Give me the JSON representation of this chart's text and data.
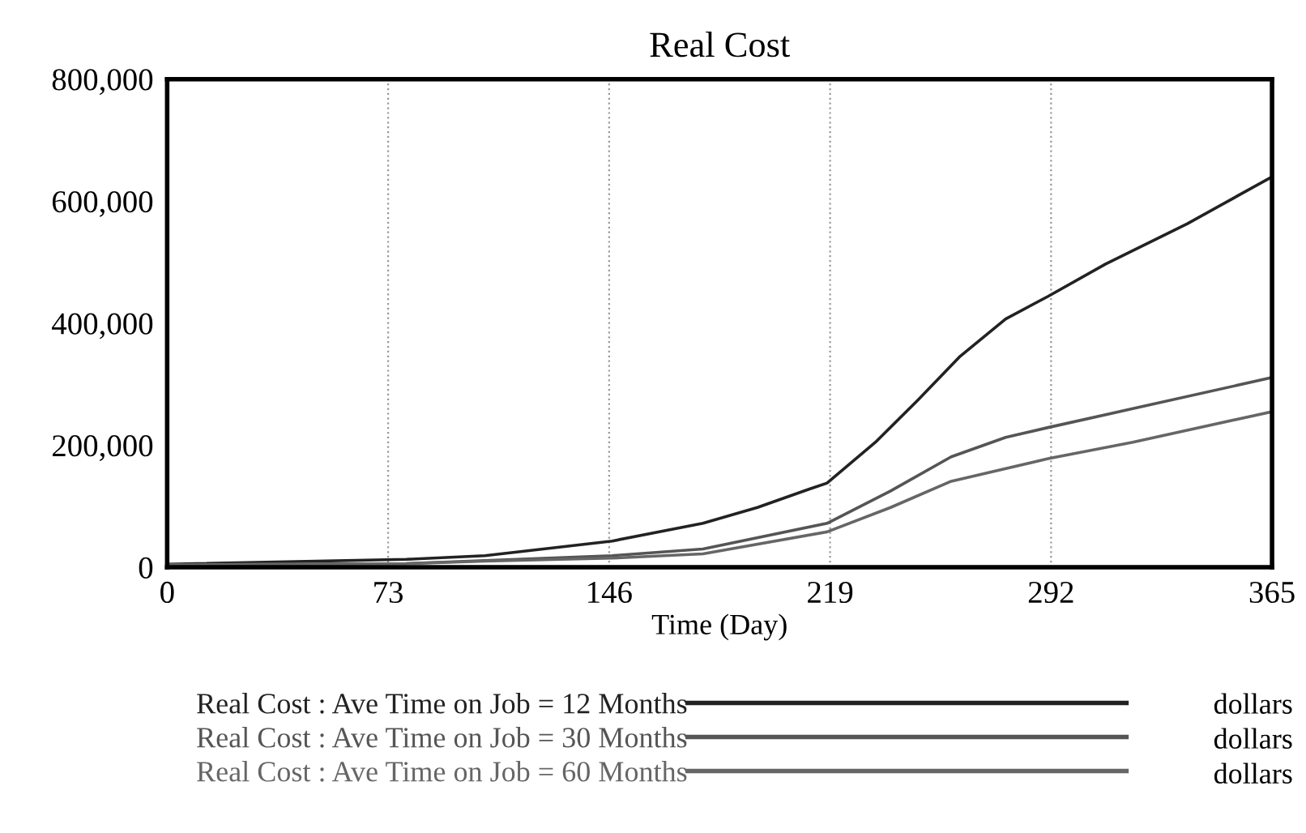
{
  "chart_data": {
    "type": "line",
    "title": "Real Cost",
    "xlabel": "Time (Day)",
    "xlim": [
      0,
      365
    ],
    "xticks": [
      0,
      73,
      146,
      219,
      292,
      365
    ],
    "ylim": [
      0,
      800000
    ],
    "yticks": [
      {
        "value": 0,
        "label": "0"
      },
      {
        "value": 200000,
        "label": "200,000"
      },
      {
        "value": 400000,
        "label": "400,000"
      },
      {
        "value": 600000,
        "label": "600,000"
      },
      {
        "value": 800000,
        "label": "800,000"
      }
    ],
    "grid": "x",
    "legend": "bottom",
    "line_style": "solid",
    "marker": "none",
    "series": [
      {
        "name": "Real Cost : Ave Time on Job = 12 Months",
        "color": "#222222",
        "x": [
          0,
          79,
          105,
          147,
          177,
          195,
          212,
          218,
          234,
          248,
          262,
          277,
          291,
          310,
          337,
          365
        ],
        "values": [
          5000,
          13000,
          19000,
          43000,
          72000,
          98000,
          128000,
          138000,
          205000,
          274000,
          346000,
          407000,
          444000,
          497000,
          563000,
          640000
        ]
      },
      {
        "name": "Real Cost : Ave Time on Job = 30 Months",
        "color": "#555555",
        "x": [
          0,
          79,
          105,
          147,
          177,
          218,
          239,
          259,
          277,
          291,
          319,
          365
        ],
        "values": [
          4000,
          6000,
          11000,
          19000,
          30000,
          72000,
          125000,
          181000,
          213000,
          229000,
          260000,
          311000
        ]
      },
      {
        "name": "Real Cost : Ave Time on Job = 60 Months",
        "color": "#666666",
        "x": [
          0,
          79,
          105,
          147,
          177,
          218,
          239,
          259,
          291,
          319,
          365
        ],
        "values": [
          4000,
          6000,
          10000,
          15000,
          22000,
          58000,
          98000,
          141000,
          178000,
          205000,
          255000
        ]
      }
    ],
    "annotations": [
      "dollars",
      "dollars",
      "dollars"
    ]
  }
}
